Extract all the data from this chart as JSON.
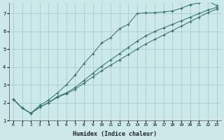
{
  "xlabel": "Humidex (Indice chaleur)",
  "ylabel": "",
  "xlim": [
    -0.5,
    23.5
  ],
  "ylim": [
    1,
    7.6
  ],
  "xticks": [
    0,
    1,
    2,
    3,
    4,
    5,
    6,
    7,
    8,
    9,
    10,
    11,
    12,
    13,
    14,
    15,
    16,
    17,
    18,
    19,
    20,
    21,
    22,
    23
  ],
  "yticks": [
    1,
    2,
    3,
    4,
    5,
    6,
    7
  ],
  "background_color": "#cde8e8",
  "grid_color": "#a8cccc",
  "line_color": "#2d6e65",
  "line1_x": [
    0,
    1,
    2,
    3,
    4,
    5,
    6,
    7,
    8,
    9,
    10,
    11,
    12,
    13,
    14,
    15,
    16,
    17,
    18,
    19,
    20,
    21,
    22,
    23
  ],
  "line1_y": [
    2.2,
    1.7,
    1.4,
    1.75,
    2.0,
    2.35,
    2.55,
    2.85,
    3.25,
    3.65,
    4.05,
    4.4,
    4.75,
    5.1,
    5.45,
    5.75,
    6.0,
    6.2,
    6.4,
    6.6,
    6.8,
    7.0,
    7.2,
    7.35
  ],
  "line2_x": [
    0,
    1,
    2,
    3,
    4,
    5,
    6,
    7,
    8,
    9,
    10,
    11,
    12,
    13,
    14,
    15,
    16,
    17,
    18,
    19,
    20,
    21,
    22,
    23
  ],
  "line2_y": [
    2.2,
    1.7,
    1.4,
    1.75,
    2.0,
    2.3,
    2.5,
    2.75,
    3.1,
    3.45,
    3.8,
    4.1,
    4.4,
    4.7,
    5.0,
    5.3,
    5.55,
    5.8,
    6.05,
    6.3,
    6.55,
    6.8,
    7.05,
    7.25
  ],
  "line3_x": [
    0,
    1,
    2,
    3,
    4,
    5,
    6,
    7,
    8,
    9,
    10,
    11,
    12,
    13,
    14,
    15,
    16,
    17,
    18,
    19,
    20,
    21,
    22,
    23
  ],
  "line3_y": [
    2.2,
    1.7,
    1.4,
    1.85,
    2.15,
    2.55,
    3.0,
    3.55,
    4.2,
    4.75,
    5.35,
    5.65,
    6.15,
    6.4,
    7.0,
    7.05,
    7.05,
    7.1,
    7.15,
    7.3,
    7.5,
    7.6,
    7.7,
    7.45
  ]
}
